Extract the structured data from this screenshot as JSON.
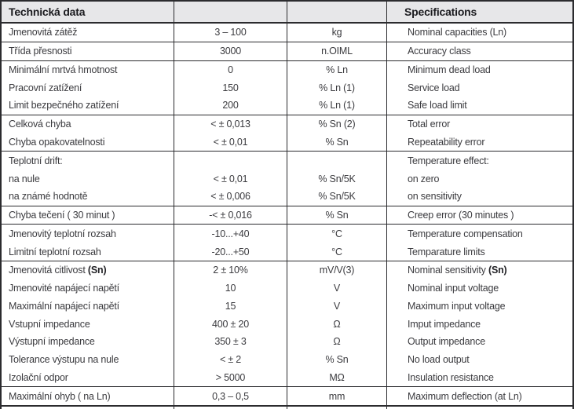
{
  "table": {
    "header_czech": "Technická data",
    "header_english": "Specifications",
    "colors": {
      "header_bg": "#e7e7e9",
      "border": "#2b2b2e",
      "body_text": "#3b3b3f",
      "header_text": "#1b1b1f"
    },
    "columns": [
      "czech_label",
      "value",
      "unit",
      "english_label"
    ],
    "rows": [
      {
        "czech": "Jmenovitá zátěž",
        "value": "3 – 100",
        "unit": "kg",
        "english": "Nominal capacities (Ln)",
        "group_start": false
      },
      {
        "czech": "Třída přesnosti",
        "value": "3000",
        "unit": "n.OIML",
        "english": "Accuracy class",
        "group_start": true
      },
      {
        "czech": "Minimální mrtvá hmotnost",
        "value": "0",
        "unit": "% Ln",
        "english": "Minimum dead load",
        "group_start": true
      },
      {
        "czech": "Pracovní zatížení",
        "value": "150",
        "unit": "% Ln (1)",
        "english": "Service load",
        "group_start": false
      },
      {
        "czech": "Limit bezpečného zatížení",
        "value": "200",
        "unit": "% Ln (1)",
        "english": "Safe load limit",
        "group_start": false
      },
      {
        "czech": "Celková chyba",
        "value": "< ± 0,013",
        "unit": "% Sn (2)",
        "english": "Total error",
        "group_start": true
      },
      {
        "czech": "Chyba opakovatelnosti",
        "value": "< ± 0,01",
        "unit": "% Sn",
        "english": "Repeatability error",
        "group_start": false
      },
      {
        "czech": "Teplotní drift:",
        "value": "",
        "unit": "",
        "english": "Temperature effect:",
        "group_start": true
      },
      {
        "czech": "na nule",
        "value": "< ± 0,01",
        "unit": "% Sn/5K",
        "english": "on zero",
        "group_start": false
      },
      {
        "czech": "na známé hodnotě",
        "value": "< ± 0,006",
        "unit": "% Sn/5K",
        "english": "on sensitivity",
        "group_start": false
      },
      {
        "czech": "Chyba tečení ( 30 minut )",
        "value": "-< ± 0,016",
        "unit": "% Sn",
        "english": "Creep error (30 minutes )",
        "group_start": true
      },
      {
        "czech": "Jmenovitý teplotní rozsah",
        "value": "-10...+40",
        "unit": "°C",
        "english": "Temperature compensation",
        "group_start": true
      },
      {
        "czech": "Limitní teplotní rozsah",
        "value": "-20...+50",
        "unit": "°C",
        "english": "Temparature limits",
        "group_start": false
      },
      {
        "czech": "Jmenovitá citlivost ",
        "czech_bold": "(Sn)",
        "value": "2 ± 10%",
        "unit": "mV/V(3)",
        "english": "Nominal sensitivity ",
        "english_bold": "(Sn)",
        "group_start": true
      },
      {
        "czech": "Jmenovité napájecí napětí",
        "value": "10",
        "unit": "V",
        "english": "Nominal input voltage",
        "group_start": false
      },
      {
        "czech": "Maximální napájecí napětí",
        "value": "15",
        "unit": "V",
        "english": "Maximum input voltage",
        "group_start": false
      },
      {
        "czech": "Vstupní impedance",
        "value": "400 ± 20",
        "unit": "Ω",
        "english": "Imput impedance",
        "group_start": false
      },
      {
        "czech": "Výstupní impedance",
        "value": "350 ± 3",
        "unit": "Ω",
        "english": "Output impedance",
        "group_start": false
      },
      {
        "czech": "Tolerance výstupu na nule",
        "value": "< ± 2",
        "unit": "% Sn",
        "english": "No load output",
        "group_start": false
      },
      {
        "czech": "Izolační odpor",
        "value": "> 5000",
        "unit": "MΩ",
        "english": "Insulation resistance",
        "group_start": false
      },
      {
        "czech": "Maximální ohyb ( na Ln)",
        "value": "0,3 – 0,5",
        "unit": "mm",
        "english": "Maximum deflection (at Ln)",
        "group_start": true
      }
    ]
  }
}
